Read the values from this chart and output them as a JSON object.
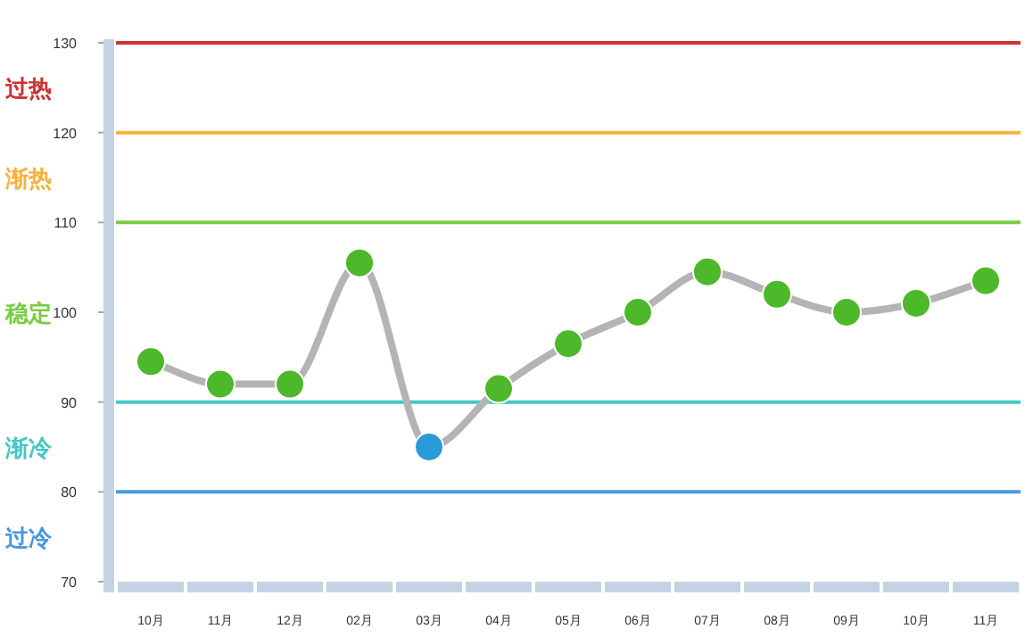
{
  "chart_data": {
    "type": "line",
    "categories": [
      "10月",
      "11月",
      "12月",
      "02月",
      "03月",
      "04月",
      "05月",
      "06月",
      "07月",
      "08月",
      "09月",
      "10月",
      "11月"
    ],
    "series": [
      {
        "color": "#b4b4b4",
        "colors": [
          "#4cb82a",
          "#4cb82a",
          "#4cb82a",
          "#4cb82a",
          "#2a9ad8",
          "#4cb82a",
          "#4cb82a",
          "#4cb82a",
          "#4cb82a",
          "#4cb82a",
          "#4cb82a",
          "#4cb82a",
          "#4cb82a"
        ],
        "values": [
          94.5,
          92,
          92,
          105.5,
          85,
          91.5,
          96.5,
          100,
          104.5,
          102,
          100,
          101,
          103.5
        ]
      }
    ],
    "ylim": [
      70,
      130
    ],
    "yticks": [
      70,
      80,
      90,
      100,
      110,
      120,
      130
    ],
    "marker": "circle",
    "ref_lines": [
      {
        "axis": "y",
        "value": 130,
        "color": "#cc3333"
      },
      {
        "axis": "y",
        "value": 120,
        "color": "#f7b23b"
      },
      {
        "axis": "y",
        "value": 110,
        "color": "#7acc44"
      },
      {
        "axis": "y",
        "value": 90,
        "color": "#44c8c4"
      },
      {
        "axis": "y",
        "value": 80,
        "color": "#4a98dc"
      }
    ],
    "annotations": [
      "过热",
      "渐热",
      "稳定",
      "渐冷",
      "过冷"
    ]
  }
}
